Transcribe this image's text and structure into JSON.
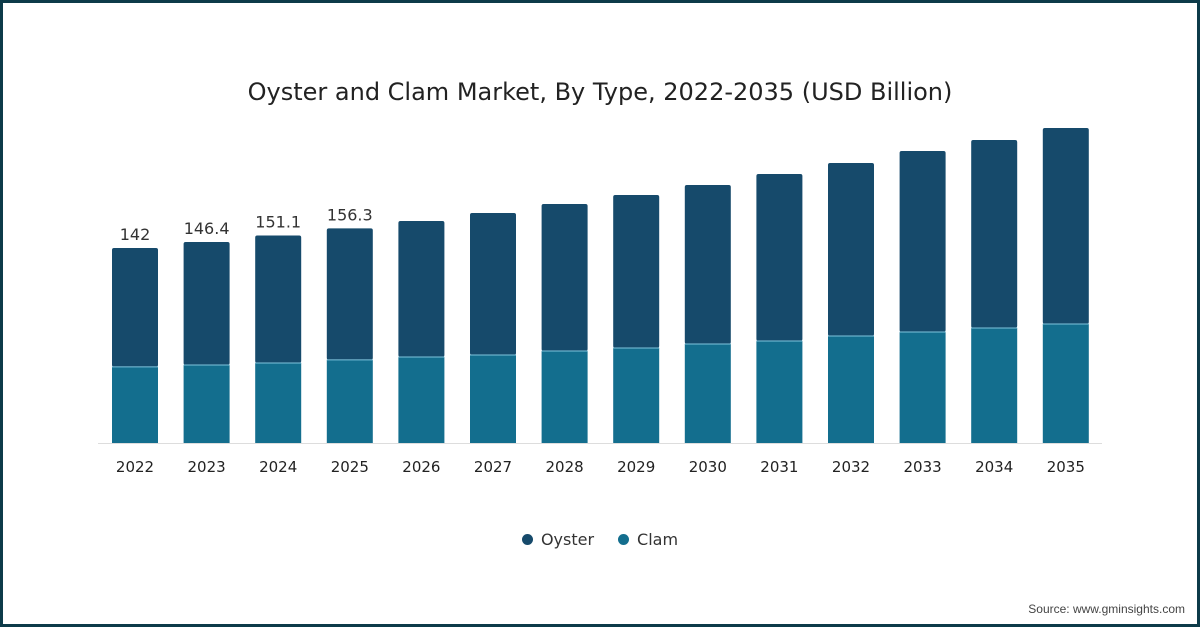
{
  "chart_data": {
    "type": "bar",
    "stacked": true,
    "title": "Oyster and Clam Market, By Type, 2022-2035 (USD Billion)",
    "xlabel": "",
    "ylabel": "",
    "categories": [
      "2022",
      "2023",
      "2024",
      "2025",
      "2026",
      "2027",
      "2028",
      "2029",
      "2030",
      "2031",
      "2032",
      "2033",
      "2034",
      "2035"
    ],
    "series": [
      {
        "name": "Clam",
        "color": "#136e8e",
        "values": [
          55.4,
          56.8,
          58.3,
          60.5,
          62.6,
          64.1,
          67.0,
          69.2,
          72.1,
          74.3,
          77.9,
          80.8,
          83.8,
          86.7
        ]
      },
      {
        "name": "Oyster",
        "color": "#164a6b",
        "values": [
          86.6,
          89.6,
          92.8,
          95.8,
          99.1,
          103.4,
          107.1,
          111.4,
          115.8,
          121.6,
          126.0,
          131.9,
          136.9,
          142.7
        ]
      }
    ],
    "data_labels": [
      "142",
      "146.4",
      "151.1",
      "156.3",
      "",
      "",
      "",
      "",
      "",
      "",
      "",
      "",
      "",
      ""
    ],
    "ylim": [
      0,
      240
    ],
    "grid": false,
    "legend": {
      "placement": "bottom",
      "entries": [
        "Oyster",
        "Clam"
      ]
    }
  },
  "source": "Source: www.gminsights.com"
}
